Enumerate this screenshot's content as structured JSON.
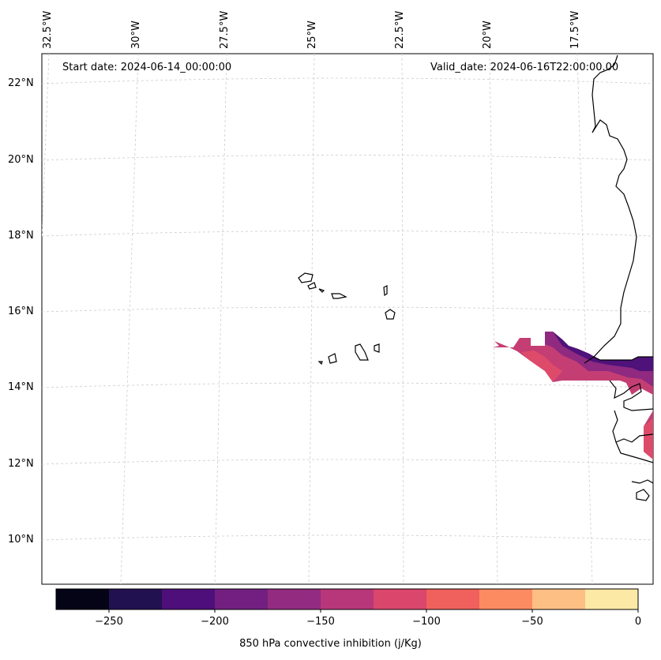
{
  "map": {
    "start_date": "Start date: 2024-06-14_00:00:00",
    "valid_date": "Valid_date: 2024-06-16T22:00:00.00",
    "lat_labels": [
      "22°N",
      "20°N",
      "18°N",
      "16°N",
      "14°N",
      "12°N",
      "10°N"
    ],
    "lon_labels": [
      "32.5°W",
      "30°W",
      "27.5°W",
      "25°W",
      "22.5°W",
      "20°W",
      "17.5°W"
    ],
    "regions": [
      "Cape Verde Islands",
      "West African coast (Senegal, Gambia, Guinea-Bissau)"
    ]
  },
  "colorbar": {
    "label": "850 hPa convective inhibition (j/Kg)",
    "ticks": [
      "−250",
      "−200",
      "−150",
      "−100",
      "−50",
      "0"
    ],
    "colors": [
      "#050416",
      "#221150",
      "#4e0f7a",
      "#721f81",
      "#932b80",
      "#b8377a",
      "#da466c",
      "#f0605d",
      "#fd8b62",
      "#febf84",
      "#fde9a6"
    ]
  }
}
